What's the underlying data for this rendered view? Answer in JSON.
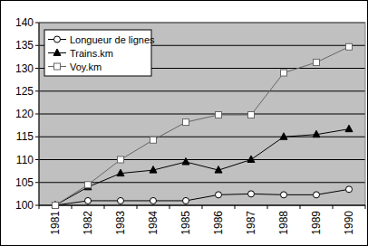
{
  "chart_data": {
    "type": "line",
    "categories": [
      "1981",
      "1982",
      "1983",
      "1984",
      "1985",
      "1986",
      "1987",
      "1988",
      "1989",
      "1990"
    ],
    "series": [
      {
        "name": "Longueur de lignes",
        "color": "#000000",
        "marker": "circle",
        "values": [
          100,
          101,
          101,
          101,
          101,
          102.3,
          102.5,
          102.3,
          102.3,
          103.5
        ]
      },
      {
        "name": "Trains.km",
        "color": "#000000",
        "marker": "triangle",
        "values": [
          100,
          104,
          107,
          107.7,
          109.5,
          107.7,
          110,
          115,
          115.5,
          116.7
        ]
      },
      {
        "name": "Voy.km",
        "color": "#666666",
        "marker": "square",
        "values": [
          100,
          104.5,
          110,
          114.3,
          118.2,
          119.8,
          119.8,
          129,
          131.3,
          134.7
        ]
      }
    ],
    "ylim": [
      100,
      140
    ],
    "yticks": [
      100,
      105,
      110,
      115,
      120,
      125,
      130,
      135,
      140
    ],
    "grid": true,
    "legend": "upper left"
  }
}
